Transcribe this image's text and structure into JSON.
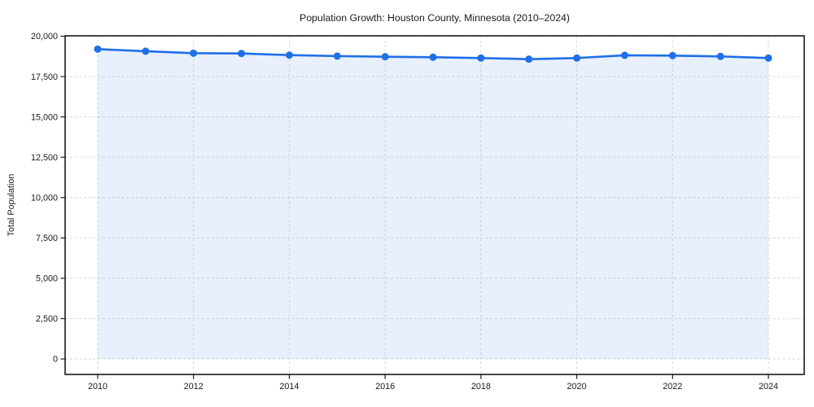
{
  "chart_data": {
    "type": "line",
    "title": "Population Growth: Houston County, Minnesota (2010–2024)",
    "xlabel": "",
    "ylabel": "Total Population",
    "x": [
      2010,
      2011,
      2012,
      2013,
      2014,
      2015,
      2016,
      2017,
      2018,
      2019,
      2020,
      2021,
      2022,
      2023,
      2024
    ],
    "series": [
      {
        "name": "Total Population",
        "values": [
          19200,
          19070,
          18950,
          18930,
          18830,
          18770,
          18730,
          18700,
          18650,
          18580,
          18650,
          18820,
          18800,
          18750,
          18650
        ]
      }
    ],
    "ylim": [
      0,
      20000
    ],
    "ytick_step": 2500,
    "yticks": [
      0,
      2500,
      5000,
      7500,
      10000,
      12500,
      15000,
      17500,
      20000
    ],
    "xticks": [
      2010,
      2012,
      2014,
      2016,
      2018,
      2020,
      2022,
      2024
    ],
    "grid": true,
    "grid_style": "dashed",
    "legend": false,
    "marker": "circle",
    "style": {
      "line_color": "#1f6fe8",
      "marker_color": "#1f6fe8",
      "fill_color": "rgba(31,111,232,0.10)",
      "grid_color": "#d6d6d6",
      "axis_color": "#1a1a1a",
      "text_color": "#1a1a1a",
      "background": "#ffffff"
    }
  }
}
